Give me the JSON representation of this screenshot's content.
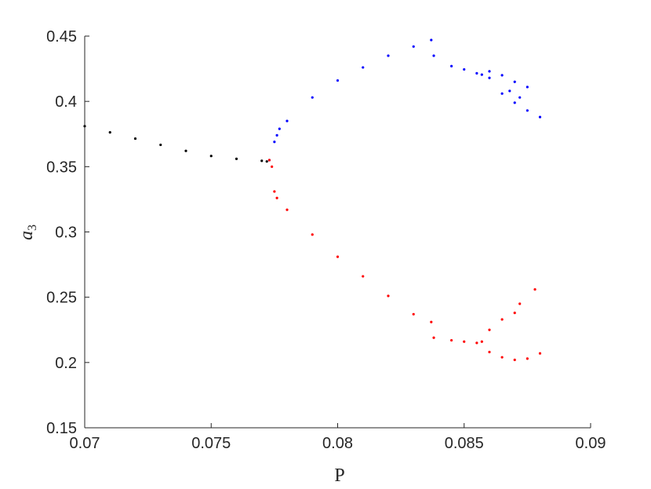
{
  "chart_data": {
    "type": "scatter",
    "title": "",
    "xlabel": "P",
    "ylabel": {
      "main": "a",
      "subscript": "3"
    },
    "xlim": [
      0.07,
      0.09
    ],
    "ylim": [
      0.15,
      0.45
    ],
    "grid": false,
    "legend": "none",
    "x_ticks": [
      "0.07",
      "0.075",
      "0.08",
      "0.085",
      "0.09"
    ],
    "y_ticks": [
      "0.15",
      "0.2",
      "0.25",
      "0.3",
      "0.35",
      "0.4",
      "0.45"
    ],
    "colors": {
      "black": "#000000",
      "blue": "#0000ff",
      "red": "#ff0000",
      "axis": "#262626"
    },
    "series": [
      {
        "color": "black",
        "points": [
          [
            0.07,
            0.381
          ],
          [
            0.071,
            0.3763
          ],
          [
            0.072,
            0.3715
          ],
          [
            0.073,
            0.3667
          ],
          [
            0.074,
            0.3621
          ],
          [
            0.075,
            0.3582
          ],
          [
            0.076,
            0.356
          ],
          [
            0.077,
            0.3545
          ],
          [
            0.0772,
            0.354
          ]
        ]
      },
      {
        "color": "blue",
        "points": [
          [
            0.0773,
            0.355
          ],
          [
            0.0775,
            0.369
          ],
          [
            0.0776,
            0.374
          ],
          [
            0.0777,
            0.379
          ],
          [
            0.078,
            0.385
          ],
          [
            0.079,
            0.403
          ],
          [
            0.08,
            0.416
          ],
          [
            0.081,
            0.426
          ],
          [
            0.082,
            0.435
          ],
          [
            0.083,
            0.442
          ],
          [
            0.0837,
            0.447
          ],
          [
            0.0838,
            0.435
          ],
          [
            0.0845,
            0.427
          ],
          [
            0.085,
            0.4245
          ],
          [
            0.0855,
            0.4215
          ],
          [
            0.0857,
            0.4205
          ],
          [
            0.086,
            0.423
          ],
          [
            0.0865,
            0.42
          ],
          [
            0.087,
            0.415
          ],
          [
            0.0875,
            0.411
          ],
          [
            0.086,
            0.418
          ],
          [
            0.0865,
            0.406
          ],
          [
            0.087,
            0.399
          ],
          [
            0.0875,
            0.393
          ],
          [
            0.088,
            0.388
          ],
          [
            0.0868,
            0.408
          ],
          [
            0.0872,
            0.403
          ]
        ]
      },
      {
        "color": "red",
        "points": [
          [
            0.0773,
            0.355
          ],
          [
            0.0774,
            0.35
          ],
          [
            0.0775,
            0.331
          ],
          [
            0.0776,
            0.326
          ],
          [
            0.078,
            0.317
          ],
          [
            0.079,
            0.298
          ],
          [
            0.08,
            0.281
          ],
          [
            0.081,
            0.266
          ],
          [
            0.082,
            0.251
          ],
          [
            0.083,
            0.237
          ],
          [
            0.0837,
            0.231
          ],
          [
            0.0838,
            0.219
          ],
          [
            0.0845,
            0.217
          ],
          [
            0.085,
            0.216
          ],
          [
            0.0855,
            0.215
          ],
          [
            0.0857,
            0.216
          ],
          [
            0.086,
            0.225
          ],
          [
            0.0865,
            0.233
          ],
          [
            0.087,
            0.238
          ],
          [
            0.086,
            0.208
          ],
          [
            0.0865,
            0.204
          ],
          [
            0.087,
            0.202
          ],
          [
            0.0875,
            0.203
          ],
          [
            0.088,
            0.207
          ],
          [
            0.0872,
            0.245
          ],
          [
            0.0878,
            0.256
          ]
        ]
      }
    ]
  }
}
